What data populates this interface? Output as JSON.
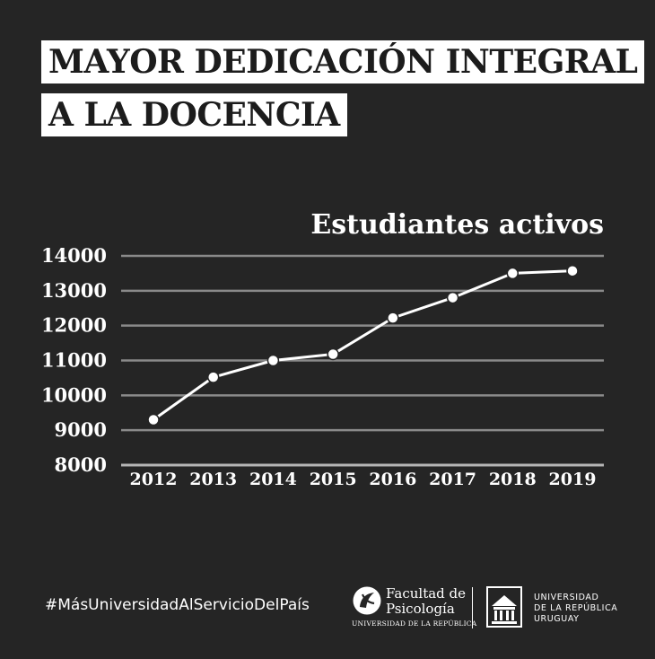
{
  "header": {
    "title_line1": "MAYOR DEDICACIÓN INTEGRAL",
    "title_line2": "A LA DOCENCIA"
  },
  "chart_data": {
    "type": "line",
    "title": "Estudiantes activos",
    "xlabel": "",
    "ylabel": "",
    "categories": [
      "2012",
      "2013",
      "2014",
      "2015",
      "2016",
      "2017",
      "2018",
      "2019"
    ],
    "values": [
      9300,
      10520,
      11000,
      11180,
      12220,
      12800,
      13500,
      13570
    ],
    "ylim": [
      8000,
      14000
    ],
    "yticks": [
      "8000",
      "9000",
      "10000",
      "11000",
      "12000",
      "13000",
      "14000"
    ],
    "grid": true,
    "colors": {
      "line": "#ffffff",
      "grid": "#8a8a8a",
      "background": "#252525"
    }
  },
  "footer": {
    "hashtag": "#MásUniversidadAlServicioDelPaís",
    "faculty_line1": "Facultad de",
    "faculty_line2": "Psicología",
    "faculty_sub": "UNIVERSIDAD DE LA REPÚBLICA",
    "faculty_logo_icon": "psychology-logo-icon",
    "university_seal_icon": "university-seal-icon",
    "university_line1": "UNIVERSIDAD",
    "university_line2": "DE LA REPÚBLICA",
    "university_line3": "URUGUAY"
  }
}
